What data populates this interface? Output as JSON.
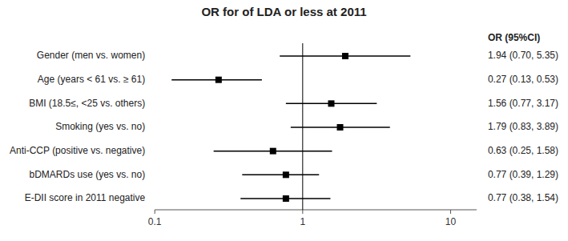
{
  "chart_data": {
    "type": "forest",
    "title": "OR for of LDA or less at 2011",
    "annotations": [
      "OR (95%CI)"
    ],
    "categories": [
      "Gender (men vs. women)",
      "Age (years < 61 vs. ≥ 61)",
      "BMI (18.5≤, <25 vs. others)",
      "Smoking (yes vs. no)",
      "Anti-CCP (positive vs. negative)",
      "bDMARDs use (yes vs. no)",
      "E-DII score in 2011 negative"
    ],
    "values": [
      1.94,
      0.27,
      1.56,
      1.79,
      0.63,
      0.77,
      0.77
    ],
    "ci_low": [
      0.7,
      0.13,
      0.77,
      0.83,
      0.25,
      0.39,
      0.38
    ],
    "ci_high": [
      5.35,
      0.53,
      3.17,
      3.89,
      1.58,
      1.29,
      1.54
    ],
    "value_labels": [
      "1.94 (0.70, 5.35)",
      "0.27 (0.13, 0.53)",
      "1.56 (0.77, 3.17)",
      "1.79 (0.83, 3.89)",
      "0.63 (0.25, 1.58)",
      "0.77 (0.39, 1.29)",
      "0.77 (0.38, 1.54)"
    ],
    "data_labels": true,
    "reference_line": 1,
    "log": "x",
    "xlim": [
      0.1,
      14.99685
    ],
    "xticks": [
      0.1,
      1,
      10
    ],
    "color": "black"
  }
}
